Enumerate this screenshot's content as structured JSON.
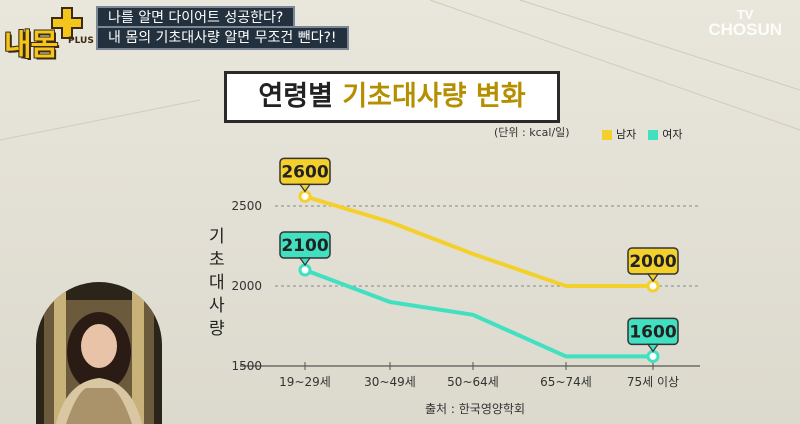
{
  "header": {
    "logo_text": "내몸",
    "logo_sub": "PLUS",
    "caption_line1": "나를 알면 다이어트 성공한다?",
    "caption_line2": "내 몸의 기초대사량 알면 무조건 뺀다?!",
    "broadcaster_tv": "TV",
    "broadcaster_name": "CHOSUN"
  },
  "chart_data": {
    "type": "line",
    "title_prefix": "연령별 ",
    "title_highlight": "기초대사량 변화",
    "unit": "(단위 : kcal/일)",
    "ylabel": "기초대사량",
    "source": "출처 : 한국영양학회",
    "categories": [
      "19~29세",
      "30~49세",
      "50~64세",
      "65~74세",
      "75세 이상"
    ],
    "yticks": [
      1500,
      2000,
      2500
    ],
    "ylim": [
      1500,
      2600
    ],
    "legend_position": "top-right",
    "series": [
      {
        "name": "남자",
        "color": "#f4d02d",
        "values": [
          2560,
          2400,
          2200,
          2000,
          2000
        ],
        "callouts": [
          {
            "index": 0,
            "label": "2600"
          },
          {
            "index": 4,
            "label": "2000"
          }
        ]
      },
      {
        "name": "여자",
        "color": "#40e0c0",
        "values": [
          2100,
          1900,
          1820,
          1560,
          1560
        ],
        "callouts": [
          {
            "index": 0,
            "label": "2100"
          },
          {
            "index": 4,
            "label": "1600"
          }
        ]
      }
    ]
  }
}
